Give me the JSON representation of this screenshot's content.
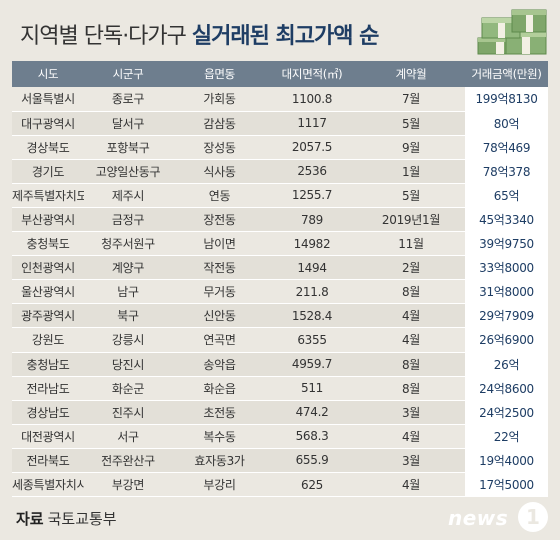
{
  "title": {
    "normal": "지역별 단독·다가구 ",
    "bold": "실거래된 최고가액 순"
  },
  "table": {
    "headers": [
      "시도",
      "시군구",
      "읍면동",
      "대지면적(㎡)",
      "계약월",
      "거래금액(만원)"
    ],
    "rows": [
      [
        "서울특별시",
        "종로구",
        "가회동",
        "1100.8",
        "7월",
        "199억8130"
      ],
      [
        "대구광역시",
        "달서구",
        "감삼동",
        "1117",
        "5월",
        "80억"
      ],
      [
        "경상북도",
        "포항북구",
        "장성동",
        "2057.5",
        "9월",
        "78억469"
      ],
      [
        "경기도",
        "고양일산동구",
        "식사동",
        "2536",
        "1월",
        "78억378"
      ],
      [
        "제주특별자치도",
        "제주시",
        "연동",
        "1255.7",
        "5월",
        "65억"
      ],
      [
        "부산광역시",
        "금정구",
        "장전동",
        "789",
        "2019년1월",
        "45억3340"
      ],
      [
        "충청북도",
        "청주서원구",
        "남이면",
        "14982",
        "11월",
        "39억9750"
      ],
      [
        "인천광역시",
        "계양구",
        "작전동",
        "1494",
        "2월",
        "33억8000"
      ],
      [
        "울산광역시",
        "남구",
        "무거동",
        "211.8",
        "8월",
        "31억8000"
      ],
      [
        "광주광역시",
        "북구",
        "신안동",
        "1528.4",
        "4월",
        "29억7909"
      ],
      [
        "강원도",
        "강릉시",
        "연곡면",
        "6355",
        "4월",
        "26억6900"
      ],
      [
        "충청남도",
        "당진시",
        "송악읍",
        "4959.7",
        "8월",
        "26억"
      ],
      [
        "전라남도",
        "화순군",
        "화순읍",
        "511",
        "8월",
        "24억8600"
      ],
      [
        "경상남도",
        "진주시",
        "초전동",
        "474.2",
        "3월",
        "24억2500"
      ],
      [
        "대전광역시",
        "서구",
        "복수동",
        "568.3",
        "4월",
        "22억"
      ],
      [
        "전라북도",
        "전주완산구",
        "효자동3가",
        "655.9",
        "3월",
        "19억4000"
      ],
      [
        "세종특별자치시",
        "부강면",
        "부강리",
        "625",
        "4월",
        "17억5000"
      ]
    ]
  },
  "footer": {
    "source_label": "자료",
    "source_name": "국토교통부"
  },
  "logo": {
    "word": "news",
    "mark": "1"
  },
  "icons": {
    "money": "money-stack-icon"
  },
  "colors": {
    "header_bg": "#6e7e8e",
    "title_accent": "#1e3d64",
    "amount_text": "#1e3d64",
    "page_bg": "#ebe8e1"
  }
}
